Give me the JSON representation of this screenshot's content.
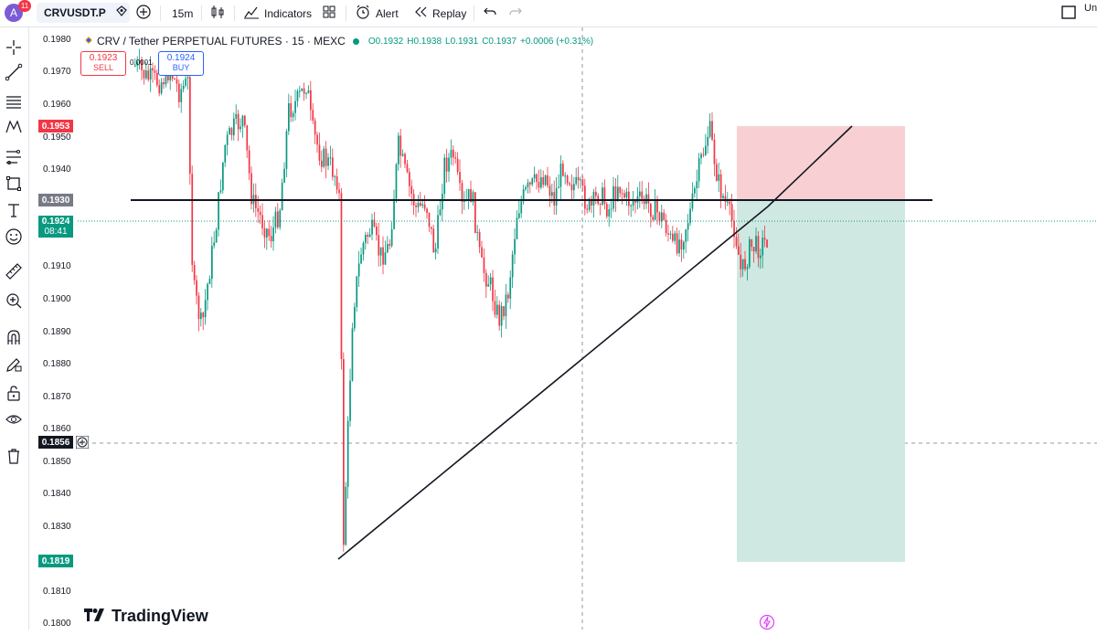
{
  "topbar": {
    "avatar_letter": "A",
    "notifications": "11",
    "symbol": "CRVUSDT.P",
    "interval": "15m",
    "indicators_label": "Indicators",
    "alert_label": "Alert",
    "replay_label": "Replay",
    "right_text": "Un"
  },
  "legend": {
    "title": "CRV / Tether PERPETUAL FUTURES · 15 · MEXC",
    "open": "O0.1932",
    "high": "H0.1938",
    "low": "L0.1931",
    "close": "C0.1937",
    "change": "+0.0006 (+0.31%)"
  },
  "trade": {
    "sell_price": "0.1923",
    "sell_label": "SELL",
    "spread": "0.0001",
    "buy_price": "0.1924",
    "buy_label": "BUY"
  },
  "price_axis": {
    "ticks": [
      "0.1980",
      "0.1970",
      "0.1960",
      "0.1950",
      "0.1940",
      "0.1910",
      "0.1900",
      "0.1890",
      "0.1880",
      "0.1870",
      "0.1860",
      "0.1850",
      "0.1840",
      "0.1830",
      "0.1810",
      "0.1800"
    ],
    "stop_label": "0.1953",
    "level_label": "0.1930",
    "current_price": "0.1924",
    "countdown": "08:41",
    "crosshair_price": "0.1856",
    "target_label": "0.1819"
  },
  "brand": {
    "name": "TradingView"
  },
  "colors": {
    "up": "#089981",
    "down": "#f23645",
    "stop_zone": "#f8d0d3",
    "target_zone": "#cfe9e2"
  }
}
